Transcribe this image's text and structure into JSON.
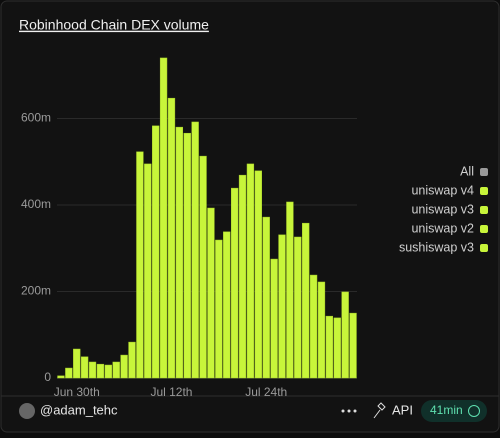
{
  "chart_data": {
    "type": "bar",
    "title": "Robinhood Chain DEX volume",
    "categories": [
      null,
      null,
      "Jun 30th",
      null,
      null,
      null,
      null,
      null,
      null,
      null,
      null,
      null,
      null,
      null,
      "Jul 12th",
      null,
      null,
      null,
      null,
      null,
      null,
      null,
      null,
      null,
      null,
      null,
      "Jul 24th",
      null,
      null,
      null,
      null,
      null,
      null,
      null,
      null,
      null,
      null,
      null
    ],
    "legend_all": {
      "name": "All",
      "color": "#9a9a9a"
    },
    "series": [
      {
        "name": "uniswap v4",
        "color": "#c8f53a",
        "values": [
          5,
          23,
          67,
          49,
          37,
          32,
          30,
          37,
          53,
          83,
          523,
          495,
          583,
          740,
          647,
          580,
          566,
          592,
          513,
          393,
          319,
          338,
          439,
          469,
          495,
          479,
          372,
          275,
          331,
          407,
          326,
          358,
          238,
          222,
          143,
          139,
          199,
          150
        ]
      },
      {
        "name": "uniswap v3",
        "color": "#c8f53a",
        "values": [
          null,
          null,
          null,
          null,
          null,
          null,
          null,
          null,
          null,
          null,
          null,
          null,
          null,
          null,
          null,
          null,
          null,
          null,
          null,
          null,
          null,
          null,
          null,
          null,
          null,
          null,
          null,
          null,
          null,
          null,
          null,
          null,
          null,
          null,
          null,
          null,
          null,
          null
        ]
      },
      {
        "name": "uniswap v2",
        "color": "#c8f53a",
        "values": [
          null,
          null,
          null,
          null,
          null,
          null,
          null,
          null,
          null,
          null,
          null,
          null,
          null,
          null,
          null,
          null,
          null,
          null,
          null,
          null,
          null,
          null,
          null,
          null,
          null,
          null,
          null,
          null,
          null,
          null,
          null,
          null,
          null,
          null,
          null,
          null,
          null,
          null
        ]
      },
      {
        "name": "sushiswap v3",
        "color": "#c8f53a",
        "values": [
          null,
          null,
          null,
          null,
          null,
          null,
          null,
          null,
          null,
          null,
          null,
          null,
          null,
          null,
          null,
          null,
          null,
          null,
          null,
          null,
          null,
          null,
          null,
          null,
          null,
          null,
          null,
          null,
          null,
          null,
          null,
          null,
          null,
          null,
          null,
          null,
          null,
          null
        ]
      }
    ],
    "ylim": [
      0,
      800
    ],
    "yticks": [
      0,
      {
        "value": 200,
        "label": "200m"
      },
      {
        "value": 400,
        "label": "400m"
      },
      {
        "value": 600,
        "label": "600m"
      }
    ],
    "grid": true,
    "stacked": true,
    "legend": "right"
  },
  "footer": {
    "author": "@adam_tehc",
    "api": "API",
    "age": "41min"
  }
}
